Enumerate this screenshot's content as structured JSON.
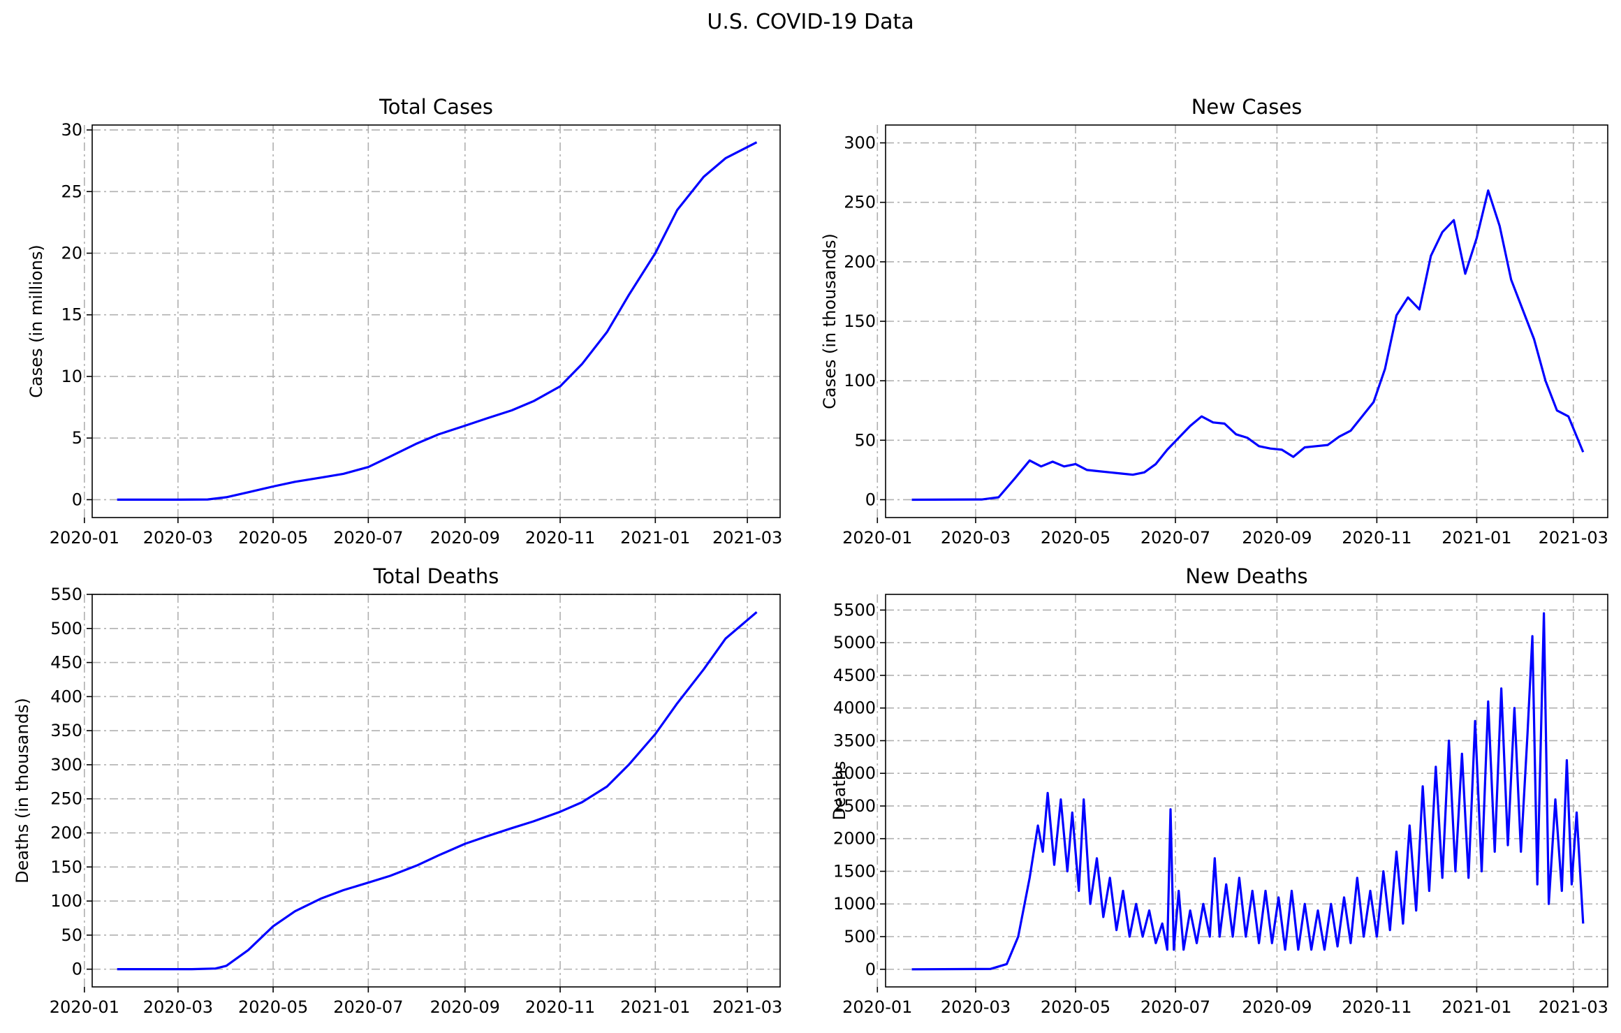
{
  "suptitle": "U.S. COVID-19 Data",
  "line_color": "#0000ff",
  "grid_color": "#b0b0b0",
  "chart_data": [
    {
      "type": "line",
      "title": "Total Cases",
      "xlabel": "",
      "ylabel": "Cases (in millions)",
      "x_ticks": [
        "2020-01",
        "2020-03",
        "2020-05",
        "2020-07",
        "2020-09",
        "2020-11",
        "2021-01",
        "2021-03"
      ],
      "y_ticks": [
        0,
        5,
        10,
        15,
        20,
        25,
        30
      ],
      "ylim": [
        -1.45,
        30.4
      ],
      "grid": true,
      "points": [
        [
          "2020-01-22",
          0
        ],
        [
          "2020-03-01",
          0
        ],
        [
          "2020-03-20",
          0.02
        ],
        [
          "2020-04-01",
          0.2
        ],
        [
          "2020-04-15",
          0.6
        ],
        [
          "2020-05-01",
          1.07
        ],
        [
          "2020-05-15",
          1.45
        ],
        [
          "2020-06-01",
          1.8
        ],
        [
          "2020-06-15",
          2.1
        ],
        [
          "2020-07-01",
          2.65
        ],
        [
          "2020-07-15",
          3.5
        ],
        [
          "2020-08-01",
          4.55
        ],
        [
          "2020-08-15",
          5.3
        ],
        [
          "2020-09-01",
          6.0
        ],
        [
          "2020-09-15",
          6.6
        ],
        [
          "2020-10-01",
          7.25
        ],
        [
          "2020-10-15",
          8.0
        ],
        [
          "2020-11-01",
          9.2
        ],
        [
          "2020-11-15",
          11.0
        ],
        [
          "2020-12-01",
          13.6
        ],
        [
          "2020-12-15",
          16.6
        ],
        [
          "2021-01-01",
          20.0
        ],
        [
          "2021-01-15",
          23.5
        ],
        [
          "2021-02-01",
          26.2
        ],
        [
          "2021-02-15",
          27.7
        ],
        [
          "2021-03-07",
          29.0
        ]
      ]
    },
    {
      "type": "line",
      "title": "New Cases",
      "xlabel": "",
      "ylabel": "Cases (in thousands)",
      "x_ticks": [
        "2020-01",
        "2020-03",
        "2020-05",
        "2020-07",
        "2020-09",
        "2020-11",
        "2021-01",
        "2021-03"
      ],
      "y_ticks": [
        0,
        50,
        100,
        150,
        200,
        250,
        300
      ],
      "ylim": [
        -15,
        315
      ],
      "grid": true,
      "points": [
        [
          "2020-01-22",
          0
        ],
        [
          "2020-03-05",
          0.2
        ],
        [
          "2020-03-15",
          2
        ],
        [
          "2020-03-25",
          18
        ],
        [
          "2020-04-03",
          33
        ],
        [
          "2020-04-10",
          28
        ],
        [
          "2020-04-17",
          32
        ],
        [
          "2020-04-24",
          28
        ],
        [
          "2020-05-01",
          30
        ],
        [
          "2020-05-08",
          25
        ],
        [
          "2020-05-15",
          24
        ],
        [
          "2020-05-22",
          23
        ],
        [
          "2020-05-29",
          22
        ],
        [
          "2020-06-05",
          21
        ],
        [
          "2020-06-12",
          23
        ],
        [
          "2020-06-19",
          30
        ],
        [
          "2020-06-26",
          42
        ],
        [
          "2020-07-03",
          52
        ],
        [
          "2020-07-10",
          62
        ],
        [
          "2020-07-17",
          70
        ],
        [
          "2020-07-24",
          65
        ],
        [
          "2020-07-31",
          64
        ],
        [
          "2020-08-07",
          55
        ],
        [
          "2020-08-14",
          52
        ],
        [
          "2020-08-21",
          45
        ],
        [
          "2020-08-28",
          43
        ],
        [
          "2020-09-04",
          42
        ],
        [
          "2020-09-11",
          36
        ],
        [
          "2020-09-18",
          44
        ],
        [
          "2020-09-25",
          45
        ],
        [
          "2020-10-02",
          46
        ],
        [
          "2020-10-09",
          53
        ],
        [
          "2020-10-16",
          58
        ],
        [
          "2020-10-23",
          70
        ],
        [
          "2020-10-30",
          82
        ],
        [
          "2020-11-06",
          110
        ],
        [
          "2020-11-13",
          155
        ],
        [
          "2020-11-20",
          170
        ],
        [
          "2020-11-27",
          160
        ],
        [
          "2020-12-04",
          205
        ],
        [
          "2020-12-11",
          225
        ],
        [
          "2020-12-18",
          235
        ],
        [
          "2020-12-25",
          190
        ],
        [
          "2021-01-01",
          220
        ],
        [
          "2021-01-08",
          260
        ],
        [
          "2021-01-15",
          230
        ],
        [
          "2021-01-22",
          185
        ],
        [
          "2021-01-29",
          160
        ],
        [
          "2021-02-05",
          135
        ],
        [
          "2021-02-12",
          100
        ],
        [
          "2021-02-19",
          75
        ],
        [
          "2021-02-26",
          70
        ],
        [
          "2021-03-07",
          40
        ]
      ]
    },
    {
      "type": "line",
      "title": "Total Deaths",
      "xlabel": "",
      "ylabel": "Deaths (in thousands)",
      "x_ticks": [
        "2020-01",
        "2020-03",
        "2020-05",
        "2020-07",
        "2020-09",
        "2020-11",
        "2021-01",
        "2021-03"
      ],
      "y_ticks": [
        0,
        50,
        100,
        150,
        200,
        250,
        300,
        350,
        400,
        450,
        500,
        550
      ],
      "ylim": [
        -26,
        550
      ],
      "grid": true,
      "points": [
        [
          "2020-01-22",
          0
        ],
        [
          "2020-03-10",
          0
        ],
        [
          "2020-03-25",
          1
        ],
        [
          "2020-04-01",
          5
        ],
        [
          "2020-04-15",
          28
        ],
        [
          "2020-05-01",
          63
        ],
        [
          "2020-05-15",
          85
        ],
        [
          "2020-06-01",
          104
        ],
        [
          "2020-06-15",
          116
        ],
        [
          "2020-07-01",
          127
        ],
        [
          "2020-07-15",
          137
        ],
        [
          "2020-08-01",
          152
        ],
        [
          "2020-08-15",
          167
        ],
        [
          "2020-09-01",
          184
        ],
        [
          "2020-09-15",
          195
        ],
        [
          "2020-10-01",
          207
        ],
        [
          "2020-10-15",
          217
        ],
        [
          "2020-11-01",
          231
        ],
        [
          "2020-11-15",
          245
        ],
        [
          "2020-12-01",
          268
        ],
        [
          "2020-12-15",
          300
        ],
        [
          "2021-01-01",
          345
        ],
        [
          "2021-01-15",
          390
        ],
        [
          "2021-02-01",
          440
        ],
        [
          "2021-02-15",
          485
        ],
        [
          "2021-03-07",
          524
        ]
      ]
    },
    {
      "type": "line",
      "title": "New Deaths",
      "xlabel": "",
      "ylabel": "Deaths",
      "x_ticks": [
        "2020-01",
        "2020-03",
        "2020-05",
        "2020-07",
        "2020-09",
        "2020-11",
        "2021-01",
        "2021-03"
      ],
      "y_ticks": [
        0,
        500,
        1000,
        1500,
        2000,
        2500,
        3000,
        3500,
        4000,
        4500,
        5000,
        5500
      ],
      "ylim": [
        -270,
        5740
      ],
      "grid": true,
      "points": [
        [
          "2020-01-22",
          0
        ],
        [
          "2020-03-10",
          5
        ],
        [
          "2020-03-20",
          80
        ],
        [
          "2020-03-27",
          500
        ],
        [
          "2020-04-03",
          1400
        ],
        [
          "2020-04-08",
          2200
        ],
        [
          "2020-04-11",
          1800
        ],
        [
          "2020-04-14",
          2700
        ],
        [
          "2020-04-18",
          1600
        ],
        [
          "2020-04-22",
          2600
        ],
        [
          "2020-04-26",
          1500
        ],
        [
          "2020-04-29",
          2400
        ],
        [
          "2020-05-03",
          1200
        ],
        [
          "2020-05-06",
          2600
        ],
        [
          "2020-05-10",
          1000
        ],
        [
          "2020-05-14",
          1700
        ],
        [
          "2020-05-18",
          800
        ],
        [
          "2020-05-22",
          1400
        ],
        [
          "2020-05-26",
          600
        ],
        [
          "2020-05-30",
          1200
        ],
        [
          "2020-06-03",
          500
        ],
        [
          "2020-06-07",
          1000
        ],
        [
          "2020-06-11",
          500
        ],
        [
          "2020-06-15",
          900
        ],
        [
          "2020-06-19",
          400
        ],
        [
          "2020-06-23",
          700
        ],
        [
          "2020-06-26",
          300
        ],
        [
          "2020-06-28",
          2450
        ],
        [
          "2020-06-30",
          300
        ],
        [
          "2020-07-03",
          1200
        ],
        [
          "2020-07-06",
          300
        ],
        [
          "2020-07-10",
          900
        ],
        [
          "2020-07-14",
          400
        ],
        [
          "2020-07-18",
          1000
        ],
        [
          "2020-07-22",
          500
        ],
        [
          "2020-07-25",
          1700
        ],
        [
          "2020-07-28",
          500
        ],
        [
          "2020-08-01",
          1300
        ],
        [
          "2020-08-05",
          500
        ],
        [
          "2020-08-09",
          1400
        ],
        [
          "2020-08-13",
          500
        ],
        [
          "2020-08-17",
          1200
        ],
        [
          "2020-08-21",
          400
        ],
        [
          "2020-08-25",
          1200
        ],
        [
          "2020-08-29",
          400
        ],
        [
          "2020-09-02",
          1100
        ],
        [
          "2020-09-06",
          300
        ],
        [
          "2020-09-10",
          1200
        ],
        [
          "2020-09-14",
          300
        ],
        [
          "2020-09-18",
          1000
        ],
        [
          "2020-09-22",
          300
        ],
        [
          "2020-09-26",
          900
        ],
        [
          "2020-09-30",
          300
        ],
        [
          "2020-10-04",
          1000
        ],
        [
          "2020-10-08",
          350
        ],
        [
          "2020-10-12",
          1100
        ],
        [
          "2020-10-16",
          400
        ],
        [
          "2020-10-20",
          1400
        ],
        [
          "2020-10-24",
          500
        ],
        [
          "2020-10-28",
          1200
        ],
        [
          "2020-11-01",
          500
        ],
        [
          "2020-11-05",
          1500
        ],
        [
          "2020-11-09",
          600
        ],
        [
          "2020-11-13",
          1800
        ],
        [
          "2020-11-17",
          700
        ],
        [
          "2020-11-21",
          2200
        ],
        [
          "2020-11-25",
          900
        ],
        [
          "2020-11-29",
          2800
        ],
        [
          "2020-12-03",
          1200
        ],
        [
          "2020-12-07",
          3100
        ],
        [
          "2020-12-11",
          1400
        ],
        [
          "2020-12-15",
          3500
        ],
        [
          "2020-12-19",
          1500
        ],
        [
          "2020-12-23",
          3300
        ],
        [
          "2020-12-27",
          1400
        ],
        [
          "2020-12-31",
          3800
        ],
        [
          "2021-01-04",
          1500
        ],
        [
          "2021-01-08",
          4100
        ],
        [
          "2021-01-12",
          1800
        ],
        [
          "2021-01-16",
          4300
        ],
        [
          "2021-01-20",
          1900
        ],
        [
          "2021-01-24",
          4000
        ],
        [
          "2021-01-28",
          1800
        ],
        [
          "2021-02-01",
          3600
        ],
        [
          "2021-02-04",
          5100
        ],
        [
          "2021-02-07",
          1300
        ],
        [
          "2021-02-11",
          5450
        ],
        [
          "2021-02-14",
          1000
        ],
        [
          "2021-02-18",
          2600
        ],
        [
          "2021-02-22",
          1200
        ],
        [
          "2021-02-25",
          3200
        ],
        [
          "2021-02-28",
          1300
        ],
        [
          "2021-03-03",
          2400
        ],
        [
          "2021-03-07",
          700
        ]
      ]
    }
  ]
}
